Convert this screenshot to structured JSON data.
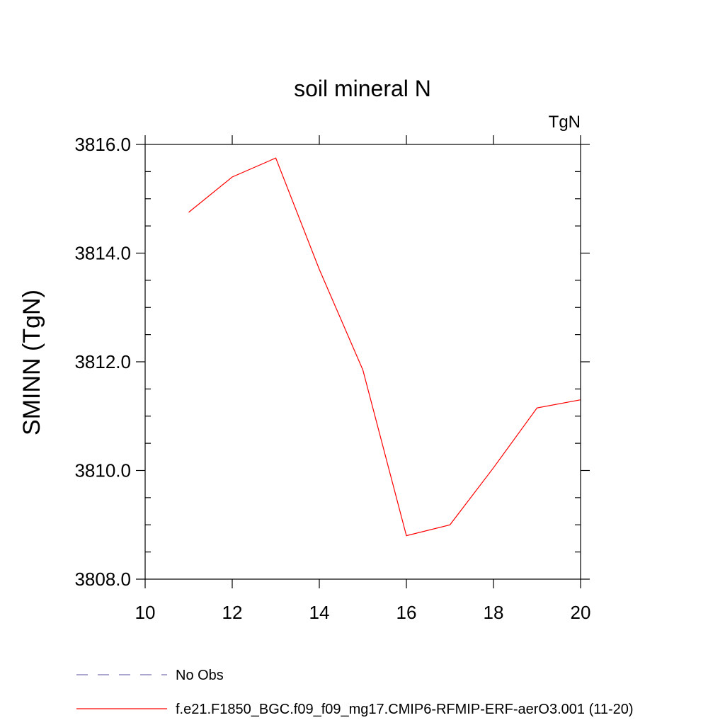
{
  "chart_data": {
    "type": "line",
    "title": "soil mineral N",
    "units_label": "TgN",
    "ylabel": "SMINN  (TgN)",
    "xlabel": "",
    "xlim": [
      10,
      20
    ],
    "ylim": [
      3808.0,
      3816.0
    ],
    "x_ticks": [
      10,
      12,
      14,
      16,
      18,
      20
    ],
    "y_ticks": [
      3808.0,
      3810.0,
      3812.0,
      3814.0,
      3816.0
    ],
    "y_tick_labels": [
      "3808.0",
      "3810.0",
      "3812.0",
      "3814.0",
      "3816.0"
    ],
    "grid": false,
    "legend_position": "bottom",
    "series": [
      {
        "name": "f.e21.F1850_BGC.f09_f09_mg17.CMIP6-RFMIP-ERF-aerO3.001 (11-20)",
        "color": "#ff0000",
        "style": "solid",
        "x": [
          11,
          12,
          13,
          14,
          15,
          16,
          17,
          18,
          19,
          20
        ],
        "y": [
          3814.75,
          3815.4,
          3815.75,
          3813.7,
          3811.85,
          3808.8,
          3809.0,
          3810.05,
          3811.15,
          3811.3
        ]
      }
    ],
    "legend": [
      {
        "label": "No Obs",
        "color": "#7b6fb0",
        "style": "dashed"
      },
      {
        "label": "f.e21.F1850_BGC.f09_f09_mg17.CMIP6-RFMIP-ERF-aerO3.001 (11-20)",
        "color": "#ff0000",
        "style": "solid"
      }
    ]
  }
}
